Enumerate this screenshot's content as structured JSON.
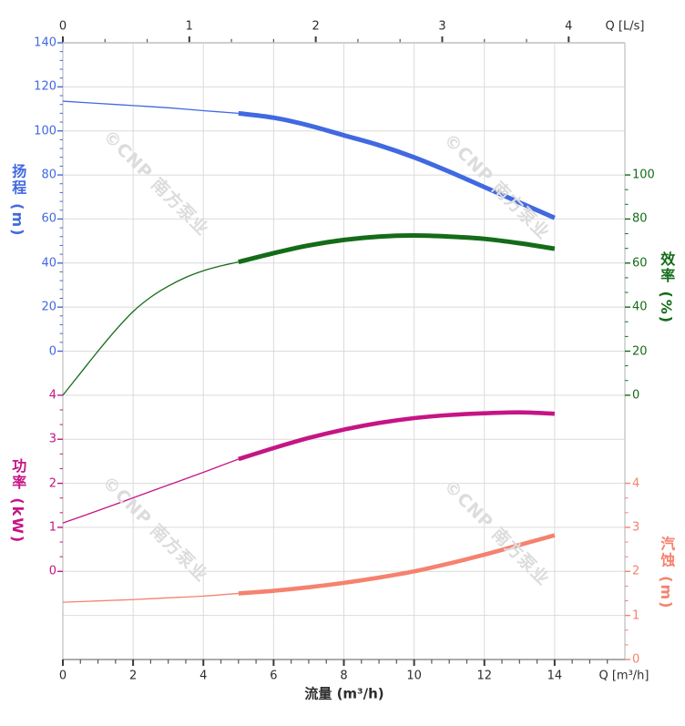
{
  "watermark": {
    "text": "©CNP 南方泵业",
    "color": "#DCDCDC"
  },
  "colors": {
    "grid": "#DBDBDB",
    "spine": "#C4C4C4",
    "spine_top": "#CFCFCF",
    "spine_bottom": "#909090",
    "tick_major": "#3A3A3A",
    "tick_minor": "#555555",
    "text": "#2E2E2E",
    "head": "#4169E1",
    "efficiency": "#146C19",
    "power": "#C51585",
    "npsh": "#F5826F"
  },
  "axes": {
    "top": {
      "title": "Q [L/s]",
      "ticks": [
        "0",
        "1",
        "2",
        "3",
        "4"
      ],
      "color": "#2E2E2E"
    },
    "bottom": {
      "title": "流量 (m³/h)",
      "corner_title": "Q [m³/h]",
      "ticks": [
        "0",
        "2",
        "4",
        "6",
        "8",
        "10",
        "12",
        "14"
      ],
      "color": "#2E2E2E"
    },
    "head": {
      "title": "扬程 (m)",
      "ticks": [
        "140",
        "120",
        "100",
        "80",
        "60",
        "40",
        "20",
        "0"
      ],
      "color": "#4169E1"
    },
    "power": {
      "title": "功率 (kW)",
      "ticks": [
        "4",
        "3",
        "2",
        "1",
        "0"
      ],
      "color": "#C51585"
    },
    "efficiency": {
      "title": "效率 (%)",
      "ticks": [
        "100",
        "80",
        "60",
        "40",
        "20",
        "0"
      ],
      "color": "#146C19"
    },
    "npsh": {
      "title": "汽蚀 (m)",
      "ticks": [
        "4",
        "3",
        "2",
        "1",
        "0"
      ],
      "color": "#F5826F"
    }
  },
  "chart_data": {
    "type": "line",
    "title": "",
    "xlabel_bottom": "流量 (m³/h)",
    "xlabel_top": "Q [L/s]",
    "x_range_m3h": [
      0,
      16
    ],
    "x_ticks_m3h": [
      0,
      2,
      4,
      6,
      8,
      10,
      12,
      14
    ],
    "x_ticks_Ls": [
      0,
      1,
      2,
      3,
      4
    ],
    "grid": true,
    "legend": "none",
    "series": [
      {
        "name": "扬程",
        "unit": "m",
        "axis": "head",
        "axis_side": "left-upper",
        "color": "#4169E1",
        "ylim": [
          0,
          140
        ],
        "axis_ticks": [
          140,
          120,
          100,
          80,
          60,
          40,
          20,
          0
        ],
        "x": [
          0,
          1,
          2,
          3,
          4,
          5,
          6,
          7,
          8,
          9,
          10,
          11,
          12,
          13,
          14
        ],
        "values": [
          113.5,
          112.5,
          111.5,
          110.5,
          109.2,
          108,
          106,
          102.5,
          98,
          93.5,
          88,
          81.5,
          74.5,
          67.5,
          60.5
        ],
        "thick_from_x": 5
      },
      {
        "name": "效率",
        "unit": "%",
        "axis": "efficiency",
        "axis_side": "right-upper",
        "color": "#146C19",
        "ylim": [
          0,
          100
        ],
        "axis_ticks": [
          100,
          80,
          60,
          40,
          20,
          0
        ],
        "x": [
          0,
          0.5,
          1,
          1.5,
          2,
          2.5,
          3,
          3.5,
          4,
          4.5,
          5,
          6,
          7,
          8,
          9,
          10,
          11,
          12,
          13,
          14
        ],
        "values": [
          0,
          10,
          20,
          29.5,
          38,
          44.5,
          49.5,
          53.5,
          56.5,
          58.7,
          60.5,
          64.5,
          68,
          70.5,
          72,
          72.5,
          72,
          71,
          69,
          66.5
        ],
        "thick_from_x": 5
      },
      {
        "name": "功率",
        "unit": "kW",
        "axis": "power",
        "axis_side": "left-lower",
        "color": "#C51585",
        "ylim": [
          0,
          4
        ],
        "axis_ticks": [
          4,
          3,
          2,
          1,
          0
        ],
        "x": [
          0,
          1,
          2,
          3,
          4,
          5,
          6,
          7,
          8,
          9,
          10,
          11,
          12,
          13,
          14
        ],
        "values": [
          1.1,
          1.38,
          1.67,
          1.96,
          2.25,
          2.55,
          2.8,
          3.03,
          3.22,
          3.37,
          3.48,
          3.55,
          3.59,
          3.61,
          3.58
        ],
        "thick_from_x": 5
      },
      {
        "name": "汽蚀",
        "unit": "m",
        "axis": "npsh",
        "axis_side": "right-lower",
        "color": "#F5826F",
        "ylim": [
          0,
          4
        ],
        "axis_ticks": [
          4,
          3,
          2,
          1,
          0
        ],
        "x": [
          0,
          1,
          2,
          3,
          4,
          5,
          6,
          7,
          8,
          9,
          10,
          11,
          12,
          13,
          14
        ],
        "values": [
          1.3,
          1.33,
          1.36,
          1.4,
          1.44,
          1.5,
          1.56,
          1.64,
          1.74,
          1.86,
          2.0,
          2.18,
          2.38,
          2.6,
          2.82
        ],
        "thick_from_x": 5
      }
    ]
  }
}
